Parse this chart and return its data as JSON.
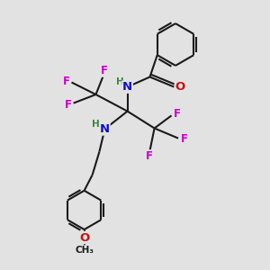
{
  "bg_color": "#e2e2e2",
  "bond_color": "#1a1a1a",
  "bond_lw": 1.5,
  "atom_colors": {
    "C": "#1a1a1a",
    "H": "#3a8a3a",
    "N": "#1010cc",
    "O": "#cc1010",
    "F": "#cc00cc"
  },
  "font_size": 8.5
}
